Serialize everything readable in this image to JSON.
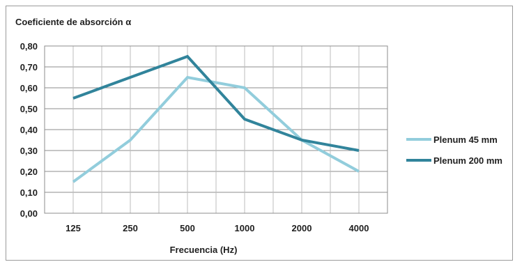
{
  "chart_data": {
    "type": "line",
    "title": "Coeficiente de absorción α",
    "xlabel": "Frecuencia (Hz)",
    "ylabel": "",
    "categories": [
      "125",
      "250",
      "500",
      "1000",
      "2000",
      "4000"
    ],
    "ylim": [
      0,
      0.8
    ],
    "yticks": [
      "0,00",
      "0,10",
      "0,20",
      "0,30",
      "0,40",
      "0,50",
      "0,60",
      "0,70",
      "0,80"
    ],
    "grid": true,
    "legend_position": "right",
    "series": [
      {
        "name": "Plenum 45 mm",
        "color": "#92cddc",
        "values": [
          0.15,
          0.35,
          0.65,
          0.6,
          0.35,
          0.2
        ]
      },
      {
        "name": "Plenum 200 mm",
        "color": "#31849b",
        "values": [
          0.55,
          0.65,
          0.75,
          0.45,
          0.35,
          0.3
        ]
      }
    ]
  }
}
